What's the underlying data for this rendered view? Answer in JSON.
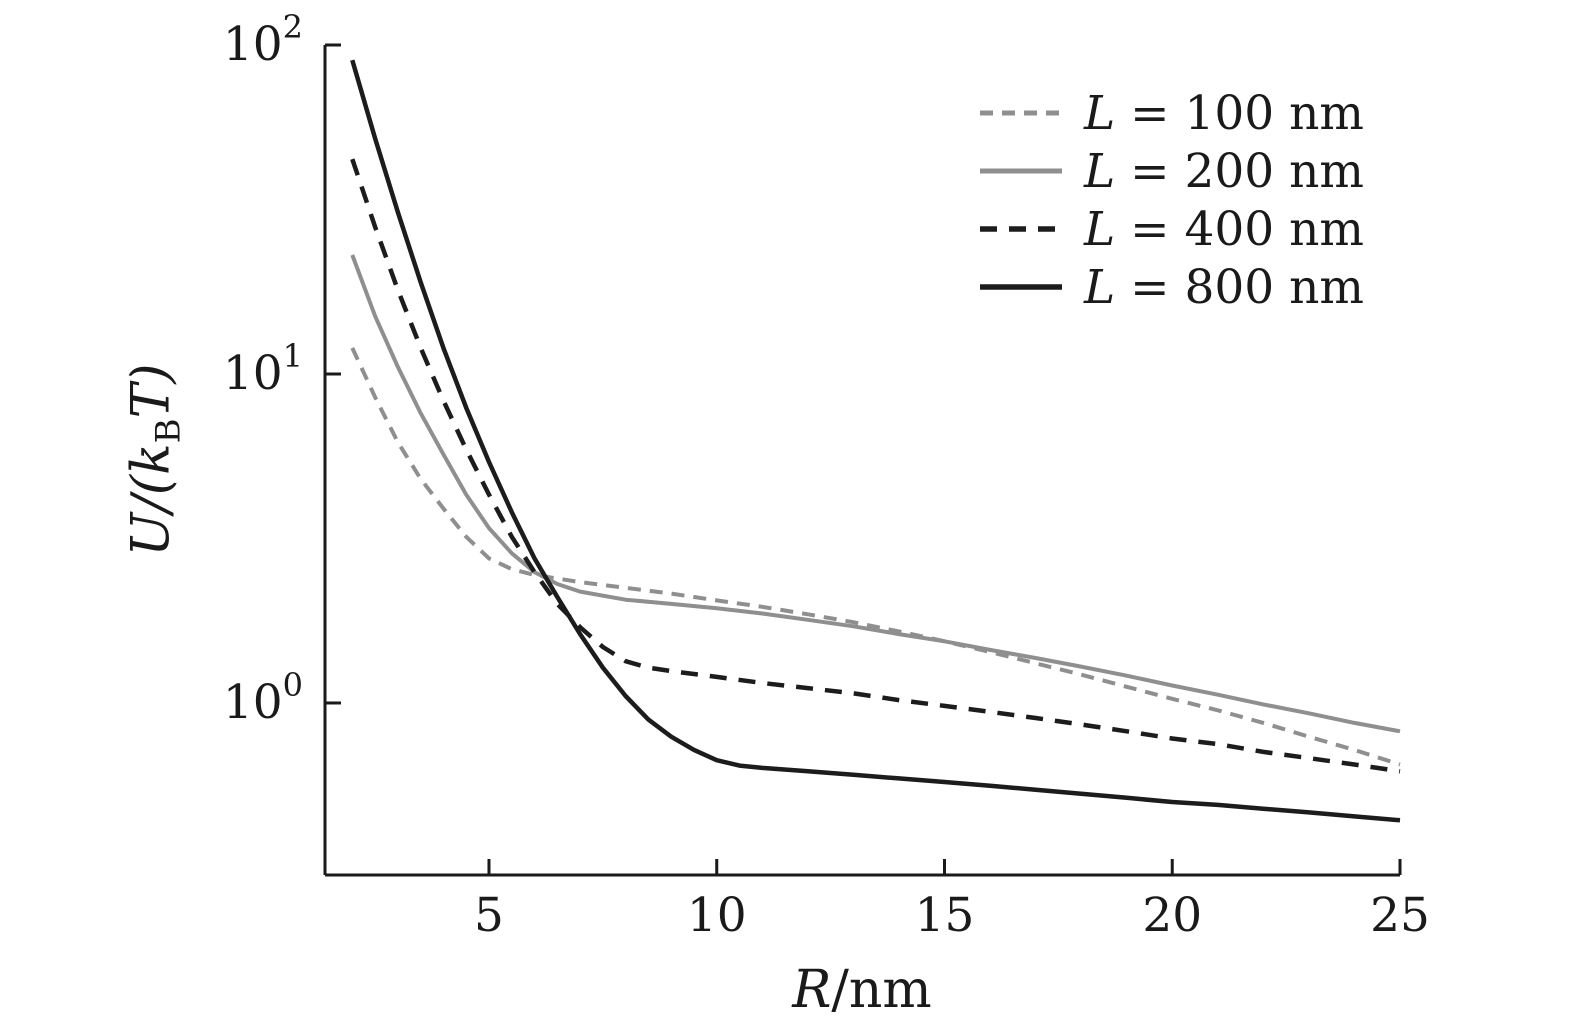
{
  "chart_data": {
    "type": "line",
    "title": "",
    "xlabel": "R/nm",
    "xlabel_var": "R",
    "xlabel_rest": "/nm",
    "ylabel": "U/(k_B T)",
    "ylabel_pre": "U/(k",
    "ylabel_sub": "B",
    "ylabel_post": "T)",
    "xlim": [
      1.4,
      25
    ],
    "ylim": [
      0.3,
      100
    ],
    "xscale": "linear",
    "yscale": "log",
    "x_ticks": [
      5,
      10,
      15,
      20,
      25
    ],
    "y_tick_exponents": [
      0,
      1,
      2
    ],
    "grid": false,
    "legend_position": "top-right",
    "axis_color": "#1a1a1a",
    "series": [
      {
        "id": "L100",
        "label": "L = 100 nm",
        "label_var": "L",
        "label_rest": " = 100 nm",
        "color": "#8f8f8f",
        "style": "dashed",
        "dash": [
          13,
          9
        ],
        "width": 4,
        "x": [
          2,
          2.5,
          3,
          3.5,
          4,
          4.5,
          5,
          5.5,
          6,
          7,
          8,
          9,
          10,
          11,
          12,
          13,
          14,
          15,
          16,
          17,
          18,
          19,
          20,
          21,
          22,
          23,
          24,
          25
        ],
        "y": [
          12,
          8.5,
          6.2,
          4.8,
          3.9,
          3.2,
          2.75,
          2.55,
          2.45,
          2.33,
          2.24,
          2.15,
          2.05,
          1.96,
          1.86,
          1.76,
          1.65,
          1.54,
          1.43,
          1.32,
          1.22,
          1.12,
          1.03,
          0.95,
          0.87,
          0.79,
          0.72,
          0.65
        ]
      },
      {
        "id": "L200",
        "label": "L = 200 nm",
        "label_var": "L",
        "label_rest": " = 200 nm",
        "color": "#8f8f8f",
        "style": "solid",
        "dash": null,
        "width": 4,
        "x": [
          2,
          2.5,
          3,
          3.5,
          4,
          4.5,
          5,
          5.5,
          6,
          6.5,
          7,
          8,
          9,
          10,
          11,
          12,
          13,
          14,
          15,
          16,
          17,
          18,
          19,
          20,
          21,
          22,
          23,
          24,
          25
        ],
        "y": [
          23,
          15,
          10.5,
          7.6,
          5.7,
          4.3,
          3.4,
          2.85,
          2.5,
          2.3,
          2.18,
          2.06,
          2.0,
          1.94,
          1.87,
          1.79,
          1.71,
          1.62,
          1.54,
          1.45,
          1.37,
          1.29,
          1.21,
          1.13,
          1.06,
          0.99,
          0.93,
          0.87,
          0.82
        ]
      },
      {
        "id": "L400",
        "label": "L = 400 nm",
        "label_var": "L",
        "label_rest": " = 400 nm",
        "color": "#1c1c1c",
        "style": "dashed",
        "dash": [
          17,
          12
        ],
        "width": 4.5,
        "x": [
          2,
          2.5,
          3,
          3.5,
          4,
          4.5,
          5,
          5.5,
          6,
          6.5,
          7,
          7.5,
          8,
          8.5,
          9,
          10,
          11,
          12,
          13,
          14,
          15,
          16,
          17,
          18,
          19,
          20,
          21,
          22,
          23,
          24,
          25
        ],
        "y": [
          45,
          28,
          18,
          12,
          8.3,
          5.9,
          4.3,
          3.2,
          2.5,
          2.0,
          1.7,
          1.48,
          1.34,
          1.28,
          1.25,
          1.2,
          1.15,
          1.11,
          1.07,
          1.02,
          0.98,
          0.94,
          0.9,
          0.86,
          0.82,
          0.78,
          0.75,
          0.71,
          0.68,
          0.65,
          0.62
        ]
      },
      {
        "id": "L800",
        "label": "L = 800 nm",
        "label_var": "L",
        "label_rest": " = 800 nm",
        "color": "#1c1c1c",
        "style": "solid",
        "dash": null,
        "width": 4.5,
        "x": [
          2,
          2.5,
          3,
          3.5,
          4,
          4.5,
          5,
          5.5,
          6,
          6.5,
          7,
          7.5,
          8,
          8.5,
          9,
          9.5,
          10,
          10.5,
          11,
          12,
          13,
          14,
          15,
          16,
          17,
          18,
          19,
          20,
          21,
          22,
          23,
          24,
          25
        ],
        "y": [
          90,
          52,
          31,
          19,
          12,
          7.9,
          5.4,
          3.8,
          2.75,
          2.1,
          1.62,
          1.28,
          1.05,
          0.89,
          0.79,
          0.72,
          0.67,
          0.645,
          0.635,
          0.62,
          0.605,
          0.59,
          0.575,
          0.56,
          0.545,
          0.53,
          0.515,
          0.5,
          0.49,
          0.477,
          0.465,
          0.452,
          0.44
        ]
      }
    ]
  }
}
